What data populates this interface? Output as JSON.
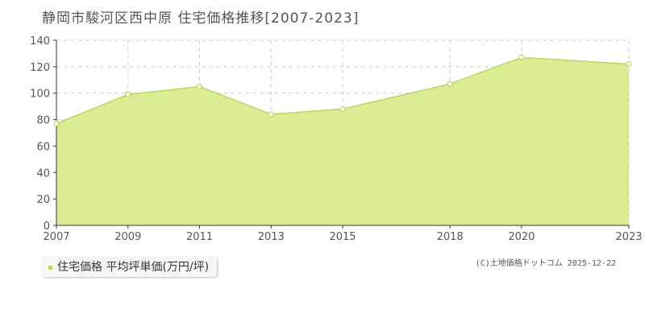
{
  "chart_data": {
    "type": "area",
    "title": "静岡市駿河区西中原 住宅価格推移[2007-2023]",
    "x": [
      2007,
      2009,
      2011,
      2013,
      2015,
      2018,
      2020,
      2023
    ],
    "xtick_labels": [
      "2007",
      "2009",
      "2011",
      "2013",
      "2015",
      "2018",
      "2020",
      "2023"
    ],
    "series": [
      {
        "name": "住宅価格 平均坪単価(万円/坪)",
        "values": [
          77,
          99,
          105,
          84,
          88,
          107,
          127,
          122
        ]
      }
    ],
    "yticks": [
      0,
      20,
      40,
      60,
      80,
      100,
      120,
      140
    ],
    "ylim": [
      0,
      140
    ],
    "grid": true,
    "legend_position": "bottom-left",
    "colors": {
      "area_fill": "#dcec95",
      "line": "#b8d85c",
      "marker_fill": "#ffffff",
      "grid": "#cccccc",
      "axis": "#333333",
      "legend_marker": "#b8d85c"
    }
  },
  "legend": {
    "label": "住宅価格 平均坪単価(万円/坪)"
  },
  "copyright": "(C)土地価格ドットコム 2025-12-22"
}
